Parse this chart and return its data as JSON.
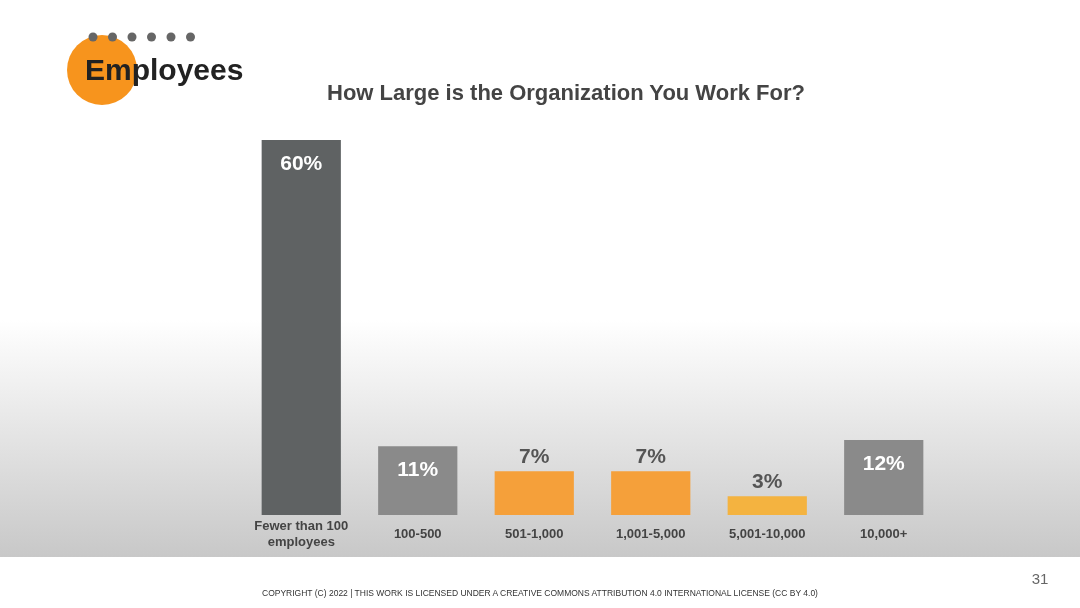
{
  "chart_data": {
    "type": "bar",
    "title": "How Large is the Organization You Work For?",
    "categories": [
      "Fewer than 100 employees",
      "100-500",
      "501-1,000",
      "1,001-5,000",
      "5,001-10,000",
      "10,000+"
    ],
    "values": [
      60,
      11,
      7,
      7,
      3,
      12
    ],
    "colors": [
      "#5f6263",
      "#8a8a8a",
      "#f5a03a",
      "#f5a03a",
      "#f4b340",
      "#8a8a8a"
    ],
    "value_labels": [
      "60%",
      "11%",
      "7%",
      "7%",
      "3%",
      "12%"
    ],
    "tick_labels": "x",
    "annotations": [
      "Employees",
      "COPYRIGHT (C) 2022 | THIS WORK IS LICENSED UNDER A CREATIVE COMMONS ATTRIBUTION 4.0 INTERNATIONAL LICENSE (CC BY 4.0)",
      "31"
    ]
  }
}
